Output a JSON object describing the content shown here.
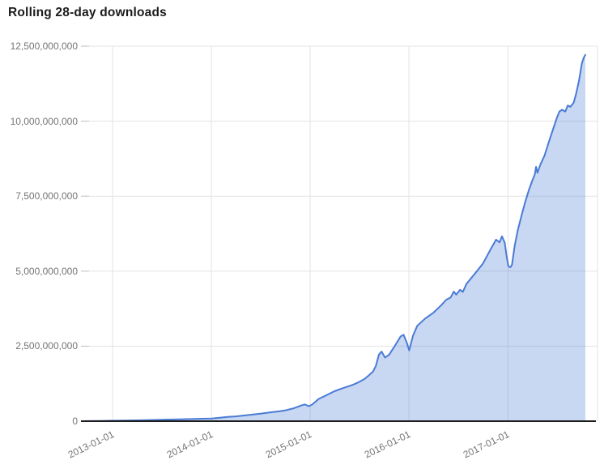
{
  "title": "Rolling 28-day downloads",
  "chart_data": {
    "type": "area",
    "title": "Rolling 28-day downloads",
    "xlabel": "",
    "ylabel": "",
    "unit": "downloads",
    "grid": true,
    "legend": false,
    "ylim": [
      0,
      12500000000
    ],
    "xlim": [
      "2012-09-21",
      "2017-11-28"
    ],
    "y_ticks": [
      {
        "value": 0,
        "label": "0"
      },
      {
        "value": 2500000000,
        "label": "2,500,000,000"
      },
      {
        "value": 5000000000,
        "label": "5,000,000,000"
      },
      {
        "value": 7500000000,
        "label": "7,500,000,000"
      },
      {
        "value": 10000000000,
        "label": "10,000,000,000"
      },
      {
        "value": 12500000000,
        "label": "12,500,000,000"
      }
    ],
    "x_ticks": [
      {
        "value": "2013-01-01",
        "label": "2013-01-01"
      },
      {
        "value": "2014-01-01",
        "label": "2014-01-01"
      },
      {
        "value": "2015-01-01",
        "label": "2015-01-01"
      },
      {
        "value": "2016-01-01",
        "label": "2016-01-01"
      },
      {
        "value": "2017-01-01",
        "label": "2017-01-01"
      }
    ],
    "x": [
      "2012-09-21",
      "2012-11-01",
      "2013-01-01",
      "2013-03-01",
      "2013-05-01",
      "2013-07-01",
      "2013-09-01",
      "2013-11-01",
      "2014-01-01",
      "2014-02-01",
      "2014-03-01",
      "2014-04-01",
      "2014-05-01",
      "2014-06-01",
      "2014-07-01",
      "2014-08-01",
      "2014-09-01",
      "2014-10-01",
      "2014-11-01",
      "2014-12-01",
      "2014-12-12",
      "2014-12-27",
      "2015-01-08",
      "2015-01-22",
      "2015-02-01",
      "2015-03-01",
      "2015-04-01",
      "2015-05-01",
      "2015-06-01",
      "2015-06-18",
      "2015-07-01",
      "2015-07-20",
      "2015-08-05",
      "2015-08-22",
      "2015-09-01",
      "2015-09-12",
      "2015-09-22",
      "2015-10-05",
      "2015-10-20",
      "2015-11-08",
      "2015-12-01",
      "2015-12-12",
      "2015-12-24",
      "2016-01-02",
      "2016-01-16",
      "2016-02-01",
      "2016-03-01",
      "2016-04-01",
      "2016-05-01",
      "2016-05-18",
      "2016-06-03",
      "2016-06-15",
      "2016-06-24",
      "2016-07-08",
      "2016-07-18",
      "2016-08-01",
      "2016-09-01",
      "2016-10-01",
      "2016-11-01",
      "2016-11-18",
      "2016-12-01",
      "2016-12-10",
      "2016-12-20",
      "2016-12-28",
      "2017-01-03",
      "2017-01-10",
      "2017-01-16",
      "2017-01-26",
      "2017-02-06",
      "2017-02-20",
      "2017-03-06",
      "2017-03-20",
      "2017-04-01",
      "2017-04-10",
      "2017-04-15",
      "2017-04-20",
      "2017-05-01",
      "2017-05-16",
      "2017-06-01",
      "2017-06-16",
      "2017-07-01",
      "2017-07-10",
      "2017-07-20",
      "2017-08-01",
      "2017-08-10",
      "2017-08-20",
      "2017-09-01",
      "2017-09-10",
      "2017-09-20",
      "2017-10-01",
      "2017-10-08",
      "2017-10-14"
    ],
    "y": [
      3000000,
      7000000,
      15000000,
      25000000,
      35000000,
      48000000,
      60000000,
      75000000,
      90000000,
      115000000,
      140000000,
      160000000,
      190000000,
      220000000,
      250000000,
      285000000,
      320000000,
      360000000,
      430000000,
      530000000,
      560000000,
      500000000,
      550000000,
      660000000,
      740000000,
      860000000,
      1000000000,
      1100000000,
      1190000000,
      1250000000,
      1310000000,
      1400000000,
      1520000000,
      1660000000,
      1850000000,
      2220000000,
      2320000000,
      2120000000,
      2220000000,
      2480000000,
      2820000000,
      2880000000,
      2620000000,
      2360000000,
      2850000000,
      3180000000,
      3420000000,
      3620000000,
      3880000000,
      4050000000,
      4120000000,
      4320000000,
      4220000000,
      4380000000,
      4310000000,
      4580000000,
      4920000000,
      5260000000,
      5780000000,
      6050000000,
      5960000000,
      6160000000,
      5950000000,
      5450000000,
      5160000000,
      5130000000,
      5220000000,
      5850000000,
      6350000000,
      6850000000,
      7320000000,
      7720000000,
      8020000000,
      8220000000,
      8480000000,
      8280000000,
      8560000000,
      8850000000,
      9300000000,
      9720000000,
      10120000000,
      10320000000,
      10380000000,
      10320000000,
      10520000000,
      10480000000,
      10620000000,
      10920000000,
      11320000000,
      11920000000,
      12120000000,
      12210000000
    ],
    "style": {
      "line_color": "#4a7bd5",
      "fill_color": "#4a7bd5",
      "fill_opacity": 0.3,
      "grid_color": "#e3e3e3",
      "tick_color": "#bdbdbd",
      "axis_color": "#1c1c1c",
      "label_color": "#757575",
      "title_color": "#1b1b1b"
    }
  }
}
